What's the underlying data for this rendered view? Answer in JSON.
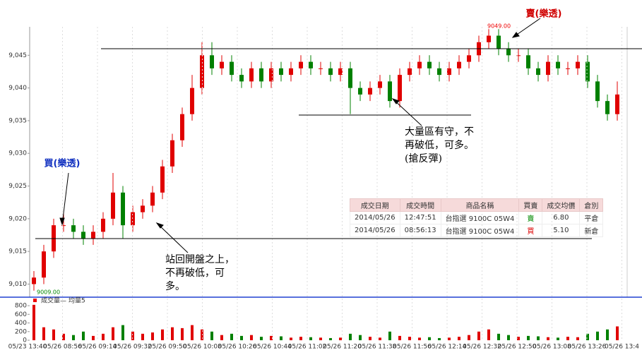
{
  "chart_data": {
    "type": "candlestick",
    "xlabels": [
      "05/23 13:40",
      "05/26 08:56",
      "05/26 09:14",
      "05/26 09:32",
      "05/26 09:50",
      "05/26 10:08",
      "05/26 10:26",
      "05/26 10:44",
      "05/26 11:02",
      "05/26 11:20",
      "05/26 11:38",
      "05/26 11:56",
      "05/26 12:14",
      "05/26 12:32",
      "05/26 12:50",
      "05/26 13:08",
      "05/26 13:26",
      "05/26 13:4"
    ],
    "open": [
      9010,
      9011,
      9015,
      9019,
      9019,
      9018,
      9017,
      9018,
      9020,
      9024,
      9019,
      9021,
      9022,
      9024,
      9028,
      9032,
      9036,
      9040,
      9045,
      9043,
      9044,
      9042,
      9041,
      9043,
      9041,
      9043,
      9042,
      9043,
      9044,
      9043,
      9043,
      9042,
      9043,
      9040,
      9039,
      9040,
      9041,
      9038,
      9042,
      9043,
      9044,
      9043,
      9042,
      9043,
      9044,
      9045,
      9047,
      9048,
      9046,
      9045,
      9045,
      9043,
      9042,
      9044,
      9043,
      9043,
      9044,
      9041,
      9038,
      9036
    ],
    "high": [
      9012,
      9016,
      9020,
      9021,
      9020,
      9019,
      9019,
      9021,
      9027,
      9025,
      9022,
      9023,
      9025,
      9029,
      9033,
      9037,
      9042,
      9047,
      9047,
      9045,
      9045,
      9043,
      9044,
      9044,
      9044,
      9044,
      9044,
      9045,
      9045,
      9044,
      9044,
      9044,
      9044,
      9041,
      9041,
      9042,
      9042,
      9043,
      9044,
      9045,
      9045,
      9044,
      9044,
      9045,
      9046,
      9048,
      9049,
      9049,
      9047,
      9046,
      9046,
      9044,
      9045,
      9045,
      9044,
      9045,
      9045,
      9042,
      9039,
      9041
    ],
    "low": [
      9009,
      9010,
      9014,
      9018,
      9017,
      9016,
      9016,
      9017,
      9019,
      9017,
      9018,
      9020,
      9021,
      9023,
      9027,
      9031,
      9035,
      9039,
      9042,
      9042,
      9041,
      9040,
      9040,
      9040,
      9040,
      9041,
      9041,
      9042,
      9042,
      9042,
      9041,
      9041,
      9036,
      9038,
      9038,
      9039,
      9037,
      9037,
      9041,
      9042,
      9042,
      9041,
      9041,
      9042,
      9043,
      9044,
      9046,
      9045,
      9044,
      9044,
      9042,
      9041,
      9041,
      9042,
      9042,
      9042,
      9040,
      9037,
      9035,
      9035
    ],
    "close": [
      9011,
      9015,
      9019,
      9019,
      9018,
      9017,
      9018,
      9020,
      9024,
      9019,
      9021,
      9022,
      9024,
      9028,
      9032,
      9036,
      9040,
      9045,
      9043,
      9044,
      9042,
      9041,
      9043,
      9041,
      9043,
      9042,
      9043,
      9044,
      9043,
      9043,
      9042,
      9043,
      9040,
      9039,
      9040,
      9041,
      9038,
      9042,
      9043,
      9044,
      9043,
      9042,
      9043,
      9044,
      9045,
      9047,
      9048,
      9046,
      9045,
      9045,
      9043,
      9042,
      9044,
      9043,
      9043,
      9044,
      9041,
      9038,
      9036,
      9039
    ],
    "volume": [
      820,
      300,
      250,
      150,
      120,
      200,
      100,
      150,
      300,
      350,
      200,
      150,
      180,
      250,
      300,
      280,
      350,
      250,
      200,
      120,
      150,
      100,
      120,
      80,
      100,
      90,
      60,
      80,
      70,
      60,
      50,
      60,
      150,
      120,
      80,
      60,
      200,
      100,
      80,
      60,
      70,
      50,
      60,
      80,
      120,
      200,
      250,
      150,
      120,
      80,
      100,
      90,
      70,
      60,
      80,
      70,
      150,
      200,
      250,
      320
    ],
    "up_color": "#e00000",
    "down_color": "#008000",
    "ylim": [
      9008,
      9050
    ],
    "yticks": [
      {
        "value": 9010,
        "label": "9,010"
      },
      {
        "value": 9015,
        "label": "9,015"
      },
      {
        "value": 9020,
        "label": "9,020"
      },
      {
        "value": 9025,
        "label": "9,025"
      },
      {
        "value": 9030,
        "label": "9,030"
      },
      {
        "value": 9035,
        "label": "9,035"
      },
      {
        "value": 9040,
        "label": "9,040"
      },
      {
        "value": 9045,
        "label": "9,045"
      }
    ],
    "vol_ylim": [
      0,
      850
    ],
    "vol_yticks": [
      0,
      200,
      400,
      600,
      800
    ],
    "vol_legend": [
      "成交量",
      "均量5"
    ],
    "max_label": "9049.00",
    "min_label": "9009.00",
    "sell_label": "賣(樂透)",
    "buy_label": "買(樂透)",
    "note_open": [
      "站回開盤之上，",
      "不再破低，可",
      "多。"
    ],
    "note_volume": [
      "大量區有守，不",
      "再破低，可多。",
      "(搶反彈)"
    ]
  },
  "trades": {
    "header": [
      "成交日期",
      "成交時間",
      "商品名稱",
      "買賣",
      "成交均價",
      "倉別"
    ],
    "rows": [
      [
        "2014/05/26",
        "12:47:51",
        "台指選 9100C 05W4",
        "賣",
        "6.80",
        "平倉"
      ],
      [
        "2014/05/26",
        "08:56:13",
        "台指選 9100C 05W4",
        "買",
        "5.10",
        "新倉"
      ]
    ]
  }
}
